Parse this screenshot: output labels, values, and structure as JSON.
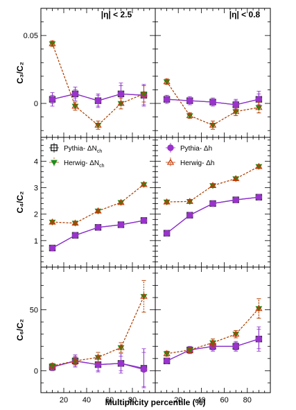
{
  "figure": {
    "xlabel": "Multiplicity percentile (%)",
    "col_titles": [
      "|η| < 2.5",
      "|η| < 0.8"
    ]
  },
  "legend": [
    {
      "label": "Pythia- ΔN",
      "sub": "ch",
      "marker": "open-square",
      "color": "#000000"
    },
    {
      "label": "Herwig- ΔN",
      "sub": "ch",
      "marker": "filled-triangle-down",
      "color": "#1a8f1a"
    },
    {
      "label": "Pythia- Δh",
      "sub": "",
      "marker": "filled-circle",
      "color": "#9933cc"
    },
    {
      "label": "Herwig- Δh",
      "sub": "",
      "marker": "open-triangle-up",
      "color": "#cc3300"
    }
  ],
  "colors": {
    "pythia_line": "#8b2fc9",
    "pythia_fill": "#9933cc",
    "herwig_line": "#b04000",
    "herwig_open": "#cc3300",
    "herwig_fill": "#1a8f1a"
  },
  "chart_data": [
    {
      "type": "line",
      "row": 0,
      "col": 0,
      "ylabel": "C₃/C₂",
      "xlim": [
        0,
        100
      ],
      "ylim": [
        -0.025,
        0.07
      ],
      "yticks": [
        {
          "v": 0,
          "label": "0"
        },
        {
          "v": 0.05,
          "label": "0.05"
        }
      ],
      "x": [
        10,
        30,
        50,
        70,
        90
      ],
      "series": [
        {
          "name": "Pythia- ΔN",
          "values": [
            0.003,
            0.007,
            0.002,
            0.007,
            0.006
          ],
          "errors": [
            0.005,
            0.005,
            0.005,
            0.008,
            0.008
          ]
        },
        {
          "name": "Pythia- Δh",
          "values": [
            0.003,
            0.007,
            0.002,
            0.007,
            0.006
          ],
          "errors": [
            0.003,
            0.003,
            0.004,
            0.006,
            0.007
          ]
        },
        {
          "name": "Herwig- ΔN",
          "values": [
            0.044,
            -0.002,
            -0.016,
            0.0,
            0.007
          ],
          "errors": [
            0.002,
            0.003,
            0.003,
            0.004,
            0.006
          ]
        },
        {
          "name": "Herwig- Δh",
          "values": [
            0.044,
            -0.002,
            -0.016,
            0.0,
            0.007
          ],
          "errors": [
            0.002,
            0.003,
            0.003,
            0.004,
            0.006
          ]
        }
      ]
    },
    {
      "type": "line",
      "row": 0,
      "col": 1,
      "ylabel": "",
      "xlim": [
        0,
        100
      ],
      "ylim": [
        -0.025,
        0.07
      ],
      "yticks": [],
      "x": [
        10,
        30,
        50,
        70,
        90
      ],
      "series": [
        {
          "name": "Pythia- ΔN",
          "values": [
            0.003,
            0.002,
            0.001,
            -0.001,
            0.003
          ],
          "errors": [
            0.003,
            0.003,
            0.003,
            0.004,
            0.006
          ]
        },
        {
          "name": "Pythia- Δh",
          "values": [
            0.003,
            0.002,
            0.001,
            -0.001,
            0.003
          ],
          "errors": [
            0.002,
            0.002,
            0.002,
            0.003,
            0.004
          ]
        },
        {
          "name": "Herwig- ΔN",
          "values": [
            0.016,
            -0.009,
            -0.016,
            -0.006,
            -0.003
          ],
          "errors": [
            0.002,
            0.002,
            0.003,
            0.003,
            0.004
          ]
        },
        {
          "name": "Herwig- Δh",
          "values": [
            0.016,
            -0.009,
            -0.016,
            -0.006,
            -0.003
          ],
          "errors": [
            0.002,
            0.002,
            0.003,
            0.003,
            0.004
          ]
        }
      ]
    },
    {
      "type": "line",
      "row": 1,
      "col": 0,
      "ylabel": "C₄/C₂",
      "xlim": [
        0,
        100
      ],
      "ylim": [
        0.0,
        4.9
      ],
      "yticks": [
        {
          "v": 1,
          "label": "1"
        },
        {
          "v": 2,
          "label": "2"
        },
        {
          "v": 3,
          "label": "3"
        },
        {
          "v": 4,
          "label": "4"
        }
      ],
      "x": [
        10,
        30,
        50,
        70,
        90
      ],
      "series": [
        {
          "name": "Pythia- ΔN",
          "values": [
            0.72,
            1.2,
            1.5,
            1.6,
            1.76
          ],
          "errors": [
            0.05,
            0.05,
            0.05,
            0.05,
            0.05
          ]
        },
        {
          "name": "Pythia- Δh",
          "values": [
            0.72,
            1.2,
            1.5,
            1.6,
            1.76
          ],
          "errors": [
            0.04,
            0.04,
            0.04,
            0.04,
            0.04
          ]
        },
        {
          "name": "Herwig- ΔN",
          "values": [
            1.7,
            1.66,
            2.12,
            2.44,
            3.12
          ],
          "errors": [
            0.05,
            0.05,
            0.05,
            0.05,
            0.05
          ]
        },
        {
          "name": "Herwig- Δh",
          "values": [
            1.7,
            1.66,
            2.12,
            2.44,
            3.12
          ],
          "errors": [
            0.05,
            0.05,
            0.05,
            0.05,
            0.05
          ]
        }
      ]
    },
    {
      "type": "line",
      "row": 1,
      "col": 1,
      "ylabel": "",
      "xlim": [
        0,
        100
      ],
      "ylim": [
        0.0,
        4.9
      ],
      "yticks": [],
      "x": [
        10,
        30,
        50,
        70,
        90
      ],
      "series": [
        {
          "name": "Pythia- ΔN",
          "values": [
            1.28,
            1.96,
            2.4,
            2.54,
            2.64
          ],
          "errors": [
            0.04,
            0.04,
            0.04,
            0.04,
            0.04
          ]
        },
        {
          "name": "Pythia- Δh",
          "values": [
            1.28,
            1.96,
            2.4,
            2.54,
            2.64
          ],
          "errors": [
            0.04,
            0.04,
            0.04,
            0.04,
            0.04
          ]
        },
        {
          "name": "Herwig- ΔN",
          "values": [
            2.46,
            2.48,
            3.08,
            3.34,
            3.8
          ],
          "errors": [
            0.05,
            0.05,
            0.05,
            0.05,
            0.05
          ]
        },
        {
          "name": "Herwig- Δh",
          "values": [
            2.46,
            2.48,
            3.08,
            3.34,
            3.8
          ],
          "errors": [
            0.05,
            0.05,
            0.05,
            0.05,
            0.05
          ]
        }
      ]
    },
    {
      "type": "line",
      "row": 2,
      "col": 0,
      "ylabel": "C₆/C₂",
      "xlim": [
        0,
        100
      ],
      "ylim": [
        -18,
        85
      ],
      "yticks": [
        {
          "v": 0,
          "label": "0"
        },
        {
          "v": 50,
          "label": "50"
        }
      ],
      "x": [
        10,
        30,
        50,
        70,
        90
      ],
      "series": [
        {
          "name": "Pythia- ΔN",
          "values": [
            3,
            8,
            5,
            6,
            2
          ],
          "errors": [
            3,
            5,
            6,
            8,
            16
          ]
        },
        {
          "name": "Pythia- Δh",
          "values": [
            3,
            8,
            5,
            6,
            1
          ],
          "errors": [
            2,
            4,
            5,
            6,
            14
          ]
        },
        {
          "name": "Herwig- ΔN",
          "values": [
            4,
            8,
            11,
            19,
            61
          ],
          "errors": [
            2,
            3,
            4,
            4,
            13
          ]
        },
        {
          "name": "Herwig- Δh",
          "values": [
            4,
            8,
            11,
            19,
            61
          ],
          "errors": [
            2,
            3,
            4,
            4,
            13
          ]
        }
      ]
    },
    {
      "type": "line",
      "row": 2,
      "col": 1,
      "ylabel": "",
      "xlim": [
        0,
        100
      ],
      "ylim": [
        -18,
        85
      ],
      "yticks": [],
      "x": [
        10,
        30,
        50,
        70,
        90
      ],
      "series": [
        {
          "name": "Pythia- ΔN",
          "values": [
            8,
            17,
            20,
            20,
            26
          ],
          "errors": [
            2,
            3,
            4,
            4,
            10
          ]
        },
        {
          "name": "Pythia- Δh",
          "values": [
            8,
            17,
            20,
            20,
            26
          ],
          "errors": [
            2,
            2,
            3,
            3,
            8
          ]
        },
        {
          "name": "Herwig- ΔN",
          "values": [
            14,
            17,
            23,
            30,
            51
          ],
          "errors": [
            2,
            2,
            3,
            3,
            8
          ]
        },
        {
          "name": "Herwig- Δh",
          "values": [
            14,
            17,
            23,
            30,
            51
          ],
          "errors": [
            2,
            2,
            3,
            3,
            8
          ]
        }
      ]
    }
  ]
}
